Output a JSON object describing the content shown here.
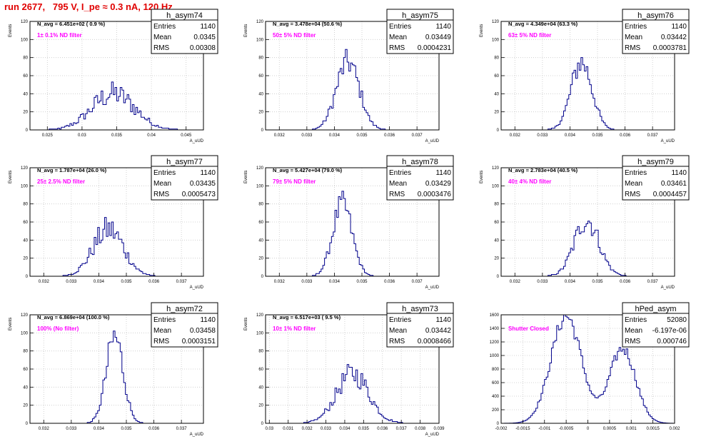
{
  "page_title": "run 2677,   795 V, I_pe ≈ 0.3 nA, 120 Hz",
  "colors": {
    "histogram": "#00008b",
    "filter_label": "#ff00ff",
    "title": "#e00000",
    "grid": "#c8c8c8"
  },
  "stats_labels": {
    "entries": "Entries",
    "mean": "Mean",
    "rms": "RMS"
  },
  "chart_data": [
    {
      "type": "bar",
      "name": "h_asym74",
      "navg": "N_avg = 6.451e+02 ( 0.9 %)",
      "filter": "1± 0.1% ND filter",
      "entries": "1140",
      "mean": "0.0345",
      "rms": "0.00308",
      "ylabel": "Events",
      "xlabel": "A_uUD",
      "xlim": [
        0.0225,
        0.0475
      ],
      "ylim": [
        0,
        120
      ],
      "xticks": [
        0.025,
        0.03,
        0.035,
        0.04,
        0.045
      ],
      "xtick_labels": [
        "0.025",
        "0.03",
        "0.035",
        "0.04",
        "0.045"
      ],
      "yticks": [
        0,
        20,
        40,
        60,
        80,
        100,
        120
      ],
      "peak_x": 0.0345,
      "peak_y": 40,
      "sigma": 0.0031,
      "noise": 0.35
    },
    {
      "type": "bar",
      "name": "h_asym75",
      "navg": "N_avg = 3.478e+04 (50.6 %)",
      "filter": "50± 5% ND filter",
      "entries": "1140",
      "mean": "0.03449",
      "rms": "0.0004231",
      "ylabel": "Events",
      "xlabel": "A_uUD",
      "xlim": [
        0.0315,
        0.0378
      ],
      "ylim": [
        0,
        120
      ],
      "xticks": [
        0.032,
        0.033,
        0.034,
        0.035,
        0.036,
        0.037
      ],
      "xtick_labels": [
        "0.032",
        "0.033",
        "0.034",
        "0.035",
        "0.036",
        "0.037"
      ],
      "yticks": [
        0,
        20,
        40,
        60,
        80,
        100,
        120
      ],
      "peak_x": 0.03449,
      "peak_y": 75,
      "sigma": 0.00042,
      "noise": 0.2
    },
    {
      "type": "bar",
      "name": "h_asym76",
      "navg": "N_avg = 4.349e+04 (63.3 %)",
      "filter": "63± 5% ND filter",
      "entries": "1140",
      "mean": "0.03442",
      "rms": "0.0003781",
      "ylabel": "Events",
      "xlabel": "A_uUD",
      "xlim": [
        0.0315,
        0.0378
      ],
      "ylim": [
        0,
        120
      ],
      "xticks": [
        0.032,
        0.033,
        0.034,
        0.035,
        0.036,
        0.037
      ],
      "xtick_labels": [
        "0.032",
        "0.033",
        "0.034",
        "0.035",
        "0.036",
        "0.037"
      ],
      "yticks": [
        0,
        20,
        40,
        60,
        80,
        100,
        120
      ],
      "peak_x": 0.03442,
      "peak_y": 75,
      "sigma": 0.00038,
      "noise": 0.2
    },
    {
      "type": "bar",
      "name": "h_asym77",
      "navg": "N_avg = 1.787e+04 (26.0 %)",
      "filter": "25± 2.5% ND filter",
      "entries": "1140",
      "mean": "0.03435",
      "rms": "0.0005473",
      "ylabel": "Events",
      "xlabel": "A_uUD",
      "xlim": [
        0.0315,
        0.0378
      ],
      "ylim": [
        0,
        120
      ],
      "xticks": [
        0.032,
        0.033,
        0.034,
        0.035,
        0.036,
        0.037
      ],
      "xtick_labels": [
        "0.032",
        "0.033",
        "0.034",
        "0.035",
        "0.036",
        "0.037"
      ],
      "yticks": [
        0,
        20,
        40,
        60,
        80,
        100,
        120
      ],
      "peak_x": 0.03435,
      "peak_y": 52,
      "sigma": 0.00055,
      "noise": 0.3
    },
    {
      "type": "bar",
      "name": "h_asym78",
      "navg": "N_avg = 5.427e+04 (79.0 %)",
      "filter": "79± 5% ND filter",
      "entries": "1140",
      "mean": "0.03429",
      "rms": "0.0003476",
      "ylabel": "Events",
      "xlabel": "A_uUD",
      "xlim": [
        0.0315,
        0.0378
      ],
      "ylim": [
        0,
        120
      ],
      "xticks": [
        0.032,
        0.033,
        0.034,
        0.035,
        0.036,
        0.037
      ],
      "xtick_labels": [
        "0.032",
        "0.033",
        "0.034",
        "0.035",
        "0.036",
        "0.037"
      ],
      "yticks": [
        0,
        20,
        40,
        60,
        80,
        100,
        120
      ],
      "peak_x": 0.03429,
      "peak_y": 80,
      "sigma": 0.00035,
      "noise": 0.18
    },
    {
      "type": "bar",
      "name": "h_asym79",
      "navg": "N_avg = 2.783e+04 (40.5 %)",
      "filter": "40± 4% ND filter",
      "entries": "1140",
      "mean": "0.03461",
      "rms": "0.0004457",
      "ylabel": "Events",
      "xlabel": "A_uUD",
      "xlim": [
        0.0315,
        0.0378
      ],
      "ylim": [
        0,
        120
      ],
      "xticks": [
        0.032,
        0.033,
        0.034,
        0.035,
        0.036,
        0.037
      ],
      "xtick_labels": [
        "0.032",
        "0.033",
        "0.034",
        "0.035",
        "0.036",
        "0.037"
      ],
      "yticks": [
        0,
        20,
        40,
        60,
        80,
        100,
        120
      ],
      "peak_x": 0.03461,
      "peak_y": 62,
      "sigma": 0.00045,
      "noise": 0.22
    },
    {
      "type": "bar",
      "name": "h_asym72",
      "navg": "N_avg = 6.869e+04 (100.0 %)",
      "filter": "100% (No filter)",
      "entries": "1140",
      "mean": "0.03458",
      "rms": "0.0003151",
      "ylabel": "Events",
      "xlabel": "A_uUD",
      "xlim": [
        0.0315,
        0.0378
      ],
      "ylim": [
        0,
        120
      ],
      "xticks": [
        0.032,
        0.033,
        0.034,
        0.035,
        0.036,
        0.037
      ],
      "xtick_labels": [
        "0.032",
        "0.033",
        "0.034",
        "0.035",
        "0.036",
        "0.037"
      ],
      "yticks": [
        0,
        20,
        40,
        60,
        80,
        100,
        120
      ],
      "peak_x": 0.03458,
      "peak_y": 95,
      "sigma": 0.00031,
      "noise": 0.2
    },
    {
      "type": "bar",
      "name": "h_asym73",
      "navg": "N_avg = 6.517e+03 ( 9.5 %)",
      "filter": "10± 1% ND filter",
      "entries": "1140",
      "mean": "0.03442",
      "rms": "0.0008466",
      "ylabel": "Events",
      "xlabel": "A_uUD",
      "xlim": [
        0.0298,
        0.039
      ],
      "ylim": [
        0,
        120
      ],
      "xticks": [
        0.03,
        0.031,
        0.032,
        0.033,
        0.034,
        0.035,
        0.036,
        0.037,
        0.038,
        0.039
      ],
      "xtick_labels": [
        "0.03",
        "0.031",
        "0.032",
        "0.033",
        "0.034",
        "0.035",
        "0.036",
        "0.037",
        "0.038",
        "0.039"
      ],
      "yticks": [
        0,
        20,
        40,
        60,
        80,
        100,
        120
      ],
      "peak_x": 0.03442,
      "peak_y": 55,
      "sigma": 0.00085,
      "noise": 0.25
    },
    {
      "type": "bar",
      "name": "hPed_asym",
      "navg": "",
      "filter": "Shutter Closed",
      "entries": "52080",
      "mean": "-6.197e-06",
      "rms": "0.000746",
      "ylabel": "",
      "xlabel": "",
      "xlim": [
        -0.002,
        0.002
      ],
      "ylim": [
        0,
        1600
      ],
      "xticks": [
        -0.002,
        -0.0015,
        -0.001,
        -0.0005,
        0,
        0.0005,
        0.001,
        0.0015,
        0.002
      ],
      "xtick_labels": [
        "-0.002",
        "-0.0015",
        "-0.001",
        "-0.0005",
        "0",
        "0.0005",
        "0.001",
        "0.0015",
        "0.002"
      ],
      "yticks": [
        0,
        200,
        400,
        600,
        800,
        1000,
        1200,
        1400,
        1600
      ],
      "peak_x": -0.0005,
      "peak_y": 1580,
      "sigma": 0.00035,
      "noise": 0.08,
      "peak2_x": 0.0008,
      "peak2_y": 1100,
      "sigma2": 0.0003,
      "baseline": 380,
      "baseline_lo": -0.0002,
      "baseline_hi": 0.0004
    }
  ]
}
